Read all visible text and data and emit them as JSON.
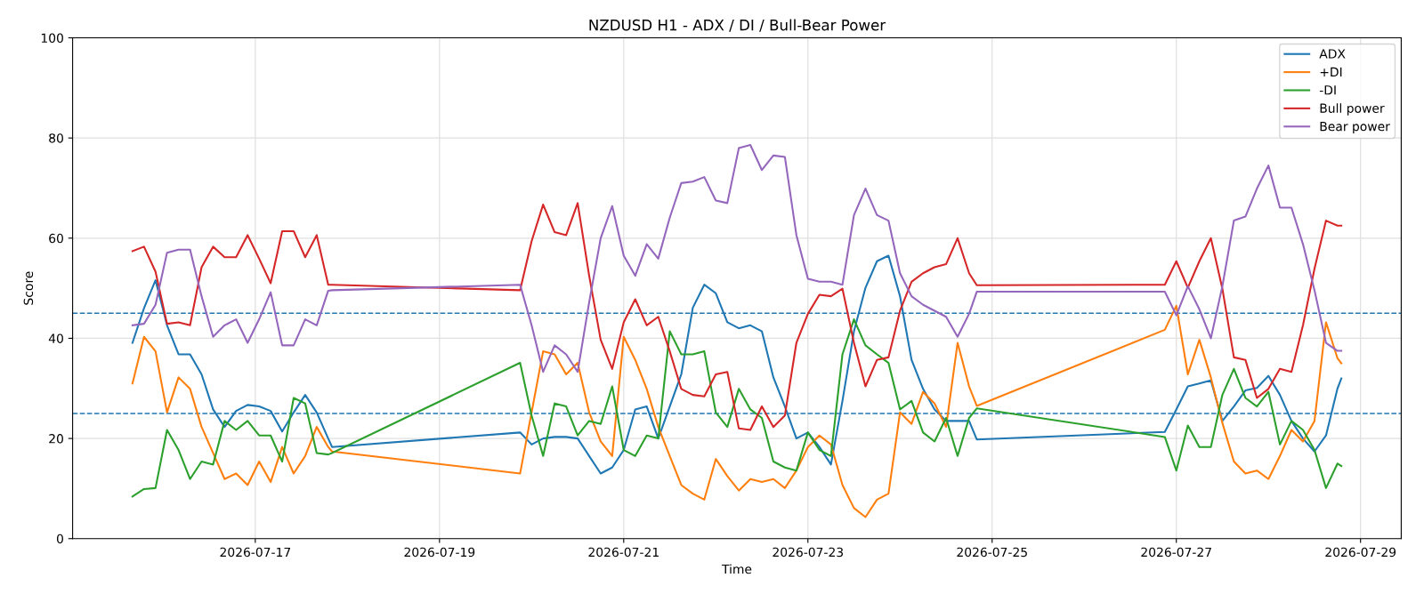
{
  "chart_data": {
    "type": "line",
    "title": "NZDUSD H1 - ADX / DI / Bull-Bear Power",
    "xlabel": "Time",
    "ylabel": "Score",
    "x": [
      "2026-07-15T16:00",
      "2026-07-15T19:00",
      "2026-07-15T22:00",
      "2026-07-16T01:00",
      "2026-07-16T04:00",
      "2026-07-16T07:00",
      "2026-07-16T10:00",
      "2026-07-16T13:00",
      "2026-07-16T16:00",
      "2026-07-16T19:00",
      "2026-07-16T22:00",
      "2026-07-17T01:00",
      "2026-07-17T04:00",
      "2026-07-17T07:00",
      "2026-07-17T10:00",
      "2026-07-17T13:00",
      "2026-07-17T16:00",
      "2026-07-17T19:00",
      "2026-07-17T20:00",
      "2026-07-19T21:00",
      "2026-07-20T00:00",
      "2026-07-20T03:00",
      "2026-07-20T06:00",
      "2026-07-20T09:00",
      "2026-07-20T12:00",
      "2026-07-20T15:00",
      "2026-07-20T18:00",
      "2026-07-20T21:00",
      "2026-07-21T00:00",
      "2026-07-21T03:00",
      "2026-07-21T06:00",
      "2026-07-21T09:00",
      "2026-07-21T12:00",
      "2026-07-21T15:00",
      "2026-07-21T18:00",
      "2026-07-21T21:00",
      "2026-07-22T00:00",
      "2026-07-22T03:00",
      "2026-07-22T06:00",
      "2026-07-22T09:00",
      "2026-07-22T12:00",
      "2026-07-22T15:00",
      "2026-07-22T18:00",
      "2026-07-22T21:00",
      "2026-07-23T00:00",
      "2026-07-23T03:00",
      "2026-07-23T06:00",
      "2026-07-23T09:00",
      "2026-07-23T12:00",
      "2026-07-23T15:00",
      "2026-07-23T18:00",
      "2026-07-23T21:00",
      "2026-07-24T00:00",
      "2026-07-24T03:00",
      "2026-07-24T06:00",
      "2026-07-24T09:00",
      "2026-07-24T12:00",
      "2026-07-24T15:00",
      "2026-07-24T18:00",
      "2026-07-24T20:00",
      "2026-07-26T21:00",
      "2026-07-27T00:00",
      "2026-07-27T03:00",
      "2026-07-27T06:00",
      "2026-07-27T09:00",
      "2026-07-27T12:00",
      "2026-07-27T15:00",
      "2026-07-27T18:00",
      "2026-07-27T21:00",
      "2026-07-28T00:00",
      "2026-07-28T03:00",
      "2026-07-28T06:00",
      "2026-07-28T09:00",
      "2026-07-28T12:00",
      "2026-07-28T15:00",
      "2026-07-28T18:00",
      "2026-07-28T19:00"
    ],
    "series": [
      {
        "name": "ADX",
        "color": "#1f77b4",
        "values": [
          39.1,
          46,
          51.6,
          42.6,
          36.8,
          36.8,
          32.8,
          25.8,
          22.3,
          25.5,
          26.7,
          26.4,
          25.5,
          21.4,
          25.2,
          28.7,
          25.2,
          20,
          18.3,
          21.2,
          18.8,
          20,
          20.3,
          20.3,
          20,
          16.5,
          13,
          14.2,
          17.7,
          25.8,
          26.4,
          20,
          26.4,
          32.8,
          46.1,
          50.7,
          49,
          43.2,
          42,
          42.6,
          41.4,
          32.2,
          26.4,
          20,
          21.2,
          18.3,
          14.8,
          27.5,
          41.4,
          50.1,
          55.4,
          56.5,
          48.4,
          35.7,
          29.9,
          25.8,
          23.5,
          23.5,
          23.5,
          19.8,
          21.3,
          25.8,
          30.4,
          31,
          31.6,
          23.5,
          26.4,
          29.6,
          30.1,
          32.5,
          28.7,
          23.5,
          20,
          17.4,
          20.6,
          30,
          32
        ]
      },
      {
        "name": "+DI",
        "color": "#ff7f0e",
        "values": [
          31,
          40.3,
          37.4,
          25.2,
          32.2,
          29.9,
          22.3,
          17.1,
          11.9,
          13,
          10.7,
          15.4,
          11.3,
          18.3,
          13,
          16.5,
          22.3,
          18.3,
          17.4,
          13,
          25.2,
          37.4,
          36.8,
          32.8,
          35.1,
          25.2,
          19.4,
          16.5,
          40.3,
          35.7,
          29.9,
          22.3,
          16.5,
          10.7,
          9,
          7.8,
          15.9,
          12.5,
          9.6,
          11.9,
          11.3,
          11.9,
          10.1,
          13.6,
          18.3,
          20.6,
          18.8,
          10.7,
          6.1,
          4.3,
          7.8,
          9,
          25.2,
          22.9,
          29.3,
          27,
          22.3,
          39.1,
          30.4,
          26.5,
          41.7,
          46.5,
          32.8,
          39.7,
          32.2,
          23.1,
          15.4,
          13,
          13.6,
          11.9,
          16.5,
          21.7,
          19.4,
          23.5,
          43.2,
          36,
          35
        ]
      },
      {
        "name": "-DI",
        "color": "#2ca02c",
        "values": [
          8.4,
          9.9,
          10.1,
          21.7,
          17.7,
          11.9,
          15.4,
          14.8,
          23.5,
          21.7,
          23.5,
          20.6,
          20.6,
          15.4,
          28.1,
          27,
          17.1,
          16.8,
          17.1,
          35.1,
          24.6,
          16.5,
          27,
          26.4,
          20.6,
          23.5,
          22.9,
          30.4,
          17.7,
          16.5,
          20.6,
          20,
          41.4,
          36.8,
          36.8,
          37.4,
          25.2,
          22.3,
          29.9,
          25.8,
          24.1,
          15.4,
          14.2,
          13.6,
          21.2,
          17.7,
          16.5,
          36.8,
          43.8,
          38.6,
          36.8,
          35.1,
          25.8,
          27.5,
          21.2,
          19.4,
          24.1,
          16.5,
          24.1,
          26,
          20.3,
          13.6,
          22.6,
          18.3,
          18.3,
          28.7,
          33.9,
          28.1,
          26.4,
          29.3,
          18.8,
          23.5,
          21.7,
          17.7,
          10.1,
          15,
          14.5
        ]
      },
      {
        "name": "Bull power",
        "color": "#d62728",
        "values": [
          57.4,
          58.3,
          53.3,
          42.9,
          43.2,
          42.6,
          54.2,
          58.3,
          56.2,
          56.2,
          60.6,
          55.9,
          51,
          61.4,
          61.4,
          56.2,
          60.6,
          50.7,
          50.7,
          49.6,
          59.4,
          66.7,
          61.2,
          60.6,
          67,
          52.5,
          39.7,
          33.9,
          43.2,
          47.8,
          42.6,
          44.3,
          37.4,
          29.9,
          28.7,
          28.4,
          32.8,
          33.3,
          22,
          21.7,
          26.4,
          22.3,
          24.6,
          39.1,
          44.9,
          48.7,
          48.4,
          49.9,
          39.1,
          30.4,
          35.7,
          36.2,
          45.5,
          51.3,
          53,
          54.2,
          54.8,
          60,
          53,
          50.6,
          50.7,
          55.4,
          50.1,
          55.4,
          60,
          49.9,
          36.2,
          35.7,
          28.1,
          29.9,
          33.9,
          33.3,
          42.6,
          53.9,
          63.5,
          62.5,
          62.5
        ]
      },
      {
        "name": "Bear power",
        "color": "#9467bd",
        "values": [
          42.6,
          42.9,
          46.7,
          57.1,
          57.7,
          57.7,
          48.4,
          40.3,
          42.6,
          43.8,
          39.1,
          43.8,
          49.2,
          38.6,
          38.6,
          43.8,
          42.6,
          49.5,
          49.6,
          50.7,
          42.6,
          33.3,
          38.6,
          36.8,
          33.3,
          47.2,
          60,
          66.4,
          56.5,
          52.5,
          58.8,
          55.9,
          64.1,
          71,
          71.3,
          72.2,
          67.5,
          67,
          78,
          78.6,
          73.6,
          76.5,
          76.2,
          60.6,
          51.9,
          51.3,
          51.3,
          50.7,
          64.6,
          69.9,
          64.6,
          63.5,
          53,
          48.4,
          46.7,
          45.5,
          44.3,
          40.3,
          44.9,
          49.3,
          49.3,
          44.6,
          50.4,
          45.8,
          40,
          50.4,
          63.5,
          64.3,
          69.9,
          74.5,
          66.1,
          66.1,
          58.8,
          49.6,
          39.1,
          37.5,
          37.5
        ]
      }
    ],
    "ref_lines": [
      {
        "axis": "y",
        "value": 45,
        "color": "#1f77b4",
        "line_style": "dashed"
      },
      {
        "axis": "y",
        "value": 25,
        "color": "#1f77b4",
        "line_style": "dashed"
      }
    ],
    "xlim": [
      "2026-07-15T00:24",
      "2026-07-29T10:36"
    ],
    "xticks": [
      {
        "value": "2026-07-17",
        "label": "2026-07-17"
      },
      {
        "value": "2026-07-19",
        "label": "2026-07-19"
      },
      {
        "value": "2026-07-21",
        "label": "2026-07-21"
      },
      {
        "value": "2026-07-23",
        "label": "2026-07-23"
      },
      {
        "value": "2026-07-25",
        "label": "2026-07-25"
      },
      {
        "value": "2026-07-27",
        "label": "2026-07-27"
      },
      {
        "value": "2026-07-29",
        "label": "2026-07-29"
      }
    ],
    "ylim": [
      0,
      100
    ],
    "yticks": [
      0,
      20,
      40,
      60,
      80,
      100
    ],
    "grid": true,
    "legend": "top right",
    "marker": "none",
    "line_style": "solid"
  }
}
